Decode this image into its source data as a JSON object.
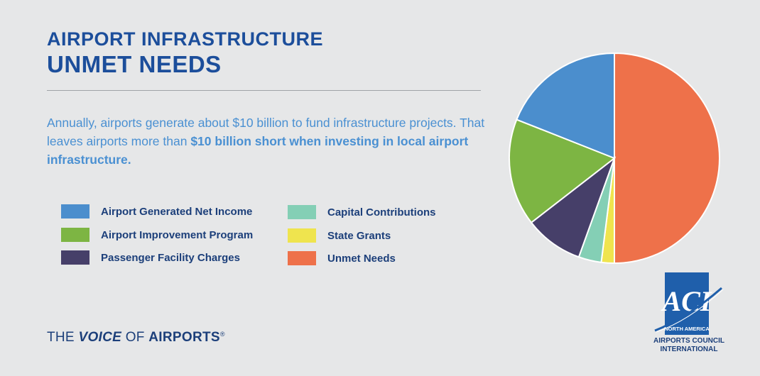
{
  "header": {
    "title_line1": "AIRPORT INFRASTRUCTURE",
    "title_line2": "UNMET NEEDS"
  },
  "description": {
    "part1": "Annually, airports generate about $10 billion to fund infrastructure projects. That leaves airports more than ",
    "emphasis": "$10 billion short when investing in local airport infrastructure."
  },
  "tagline": {
    "the": "THE ",
    "voice": "VOICE",
    "of": " OF ",
    "airports": "AIRPORTS",
    "reg": "®"
  },
  "logo": {
    "letters": "ACI",
    "region": "NORTH AMERICA",
    "line1": "AIRPORTS COUNCIL",
    "line2": "INTERNATIONAL"
  },
  "chart_data": {
    "type": "pie",
    "start": "12 o'clock, clockwise",
    "series": [
      {
        "name": "Unmet Needs",
        "value": 50,
        "color": "#ee714a"
      },
      {
        "name": "State Grants",
        "value": 2,
        "color": "#efe44e"
      },
      {
        "name": "Capital Contributions",
        "value": 3.5,
        "color": "#84cfb5"
      },
      {
        "name": "Passenger Facility Charges",
        "value": 9,
        "color": "#463f69"
      },
      {
        "name": "Airport Improvement Program",
        "value": 16.5,
        "color": "#7db543"
      },
      {
        "name": "Airport Generated Net Income",
        "value": 19,
        "color": "#4b8ecd"
      }
    ],
    "legend": {
      "placement": "left, two columns",
      "column1": [
        {
          "label": "Airport Generated Net Income",
          "color": "#4b8ecd"
        },
        {
          "label": "Airport Improvement Program",
          "color": "#7db543"
        },
        {
          "label": "Passenger Facility Charges",
          "color": "#463f69"
        }
      ],
      "column2": [
        {
          "label": "Capital Contributions",
          "color": "#84cfb5"
        },
        {
          "label": "State Grants",
          "color": "#efe44e"
        },
        {
          "label": "Unmet Needs",
          "color": "#ee714a"
        }
      ]
    }
  }
}
